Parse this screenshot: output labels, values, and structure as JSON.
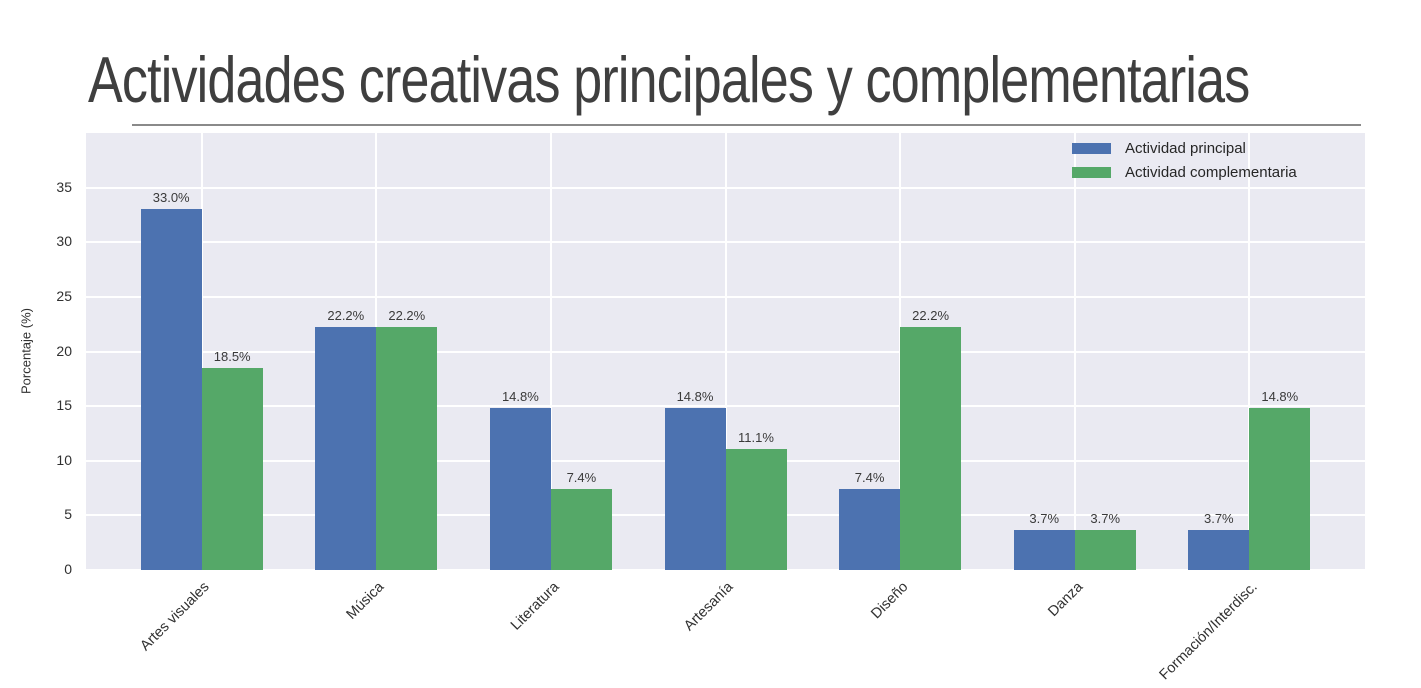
{
  "slide": {
    "title": "Actividades creativas principales y complementarias"
  },
  "chart_data": {
    "type": "bar",
    "title": "Actividades creativas principales y complementarias",
    "categories": [
      "Artes visuales",
      "Música",
      "Literatura",
      "Artesanía",
      "Diseño",
      "Danza",
      "Formación/Interdisc."
    ],
    "series": [
      {
        "name": "Actividad principal",
        "color": "#4c72b0",
        "values": [
          33.0,
          22.2,
          14.8,
          14.8,
          7.4,
          3.7,
          3.7
        ],
        "labels": [
          "33.0%",
          "22.2%",
          "14.8%",
          "14.8%",
          "7.4%",
          "3.7%",
          "3.7%"
        ]
      },
      {
        "name": "Actividad complementaria",
        "color": "#55a868",
        "values": [
          18.5,
          22.2,
          7.4,
          11.1,
          22.2,
          3.7,
          14.8
        ],
        "labels": [
          "18.5%",
          "22.2%",
          "7.4%",
          "11.1%",
          "22.2%",
          "3.7%",
          "14.8%"
        ]
      }
    ],
    "xlabel": "",
    "ylabel": "Porcentaje (%)",
    "yticks": [
      0,
      5,
      10,
      15,
      20,
      25,
      30,
      35
    ],
    "ylim": [
      0,
      40
    ],
    "grid": true,
    "grid_color": "#ffffff",
    "plot_background": "#eaeaf2",
    "legend_position": "upper right",
    "legend_frame": false
  }
}
